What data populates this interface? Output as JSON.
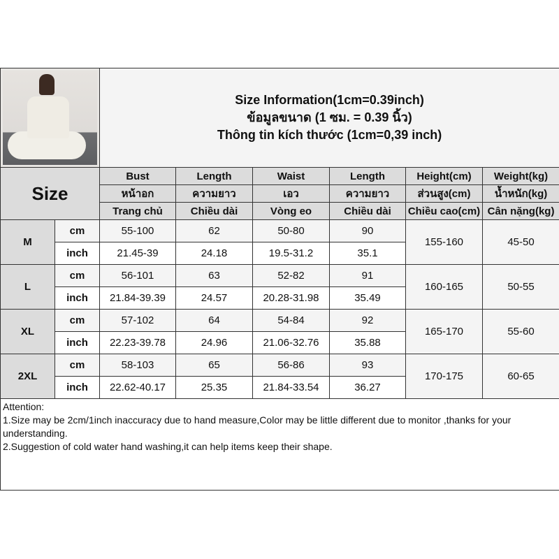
{
  "title_lines": [
    "Size Information(1cm=0.39inch)",
    "ข้อมูลขนาด (1 ซม. = 0.39 นิ้ว)",
    "Thông tin kích thước (1cm=0,39 inch)"
  ],
  "size_label": "Size",
  "headers": [
    [
      "Bust",
      "Length",
      "Waist",
      "Length",
      "Height(cm)",
      "Weight(kg)"
    ],
    [
      "หน้าอก",
      "ความยาว",
      "เอว",
      "ความยาว",
      "ส่วนสูง(cm)",
      "น้ำหนัก(kg)"
    ],
    [
      "Trang chủ",
      "Chiều dài",
      "Vòng eo",
      "Chiều dài",
      "Chiều cao(cm)",
      "Cân nặng(kg)"
    ]
  ],
  "rows": [
    {
      "size": "M",
      "cm": {
        "unit": "cm",
        "values": [
          "55-100",
          "62",
          "50-80",
          "90"
        ]
      },
      "inch": {
        "unit": "inch",
        "values": [
          "21.45-39",
          "24.18",
          "19.5-31.2",
          "35.1"
        ]
      },
      "height": "155-160",
      "weight": "45-50"
    },
    {
      "size": "L",
      "cm": {
        "unit": "cm",
        "values": [
          "56-101",
          "63",
          "52-82",
          "91"
        ]
      },
      "inch": {
        "unit": "inch",
        "values": [
          "21.84-39.39",
          "24.57",
          "20.28-31.98",
          "35.49"
        ]
      },
      "height": "160-165",
      "weight": "50-55"
    },
    {
      "size": "XL",
      "cm": {
        "unit": "cm",
        "values": [
          "57-102",
          "64",
          "54-84",
          "92"
        ]
      },
      "inch": {
        "unit": "inch",
        "values": [
          "22.23-39.78",
          "24.96",
          "21.06-32.76",
          "35.88"
        ]
      },
      "height": "165-170",
      "weight": "55-60"
    },
    {
      "size": "2XL",
      "cm": {
        "unit": "cm",
        "values": [
          "58-103",
          "65",
          "56-86",
          "93"
        ]
      },
      "inch": {
        "unit": "inch",
        "values": [
          "22.62-40.17",
          "25.35",
          "21.84-33.54",
          "36.27"
        ]
      },
      "height": "170-175",
      "weight": "60-65"
    }
  ],
  "attention": [
    "Attention:",
    "1.Size may be 2cm/1inch inaccuracy due to hand measure,Color may be little different due to monitor ,thanks for your understanding.",
    "2.Suggestion of cold water hand washing,it can help items keep their shape."
  ]
}
